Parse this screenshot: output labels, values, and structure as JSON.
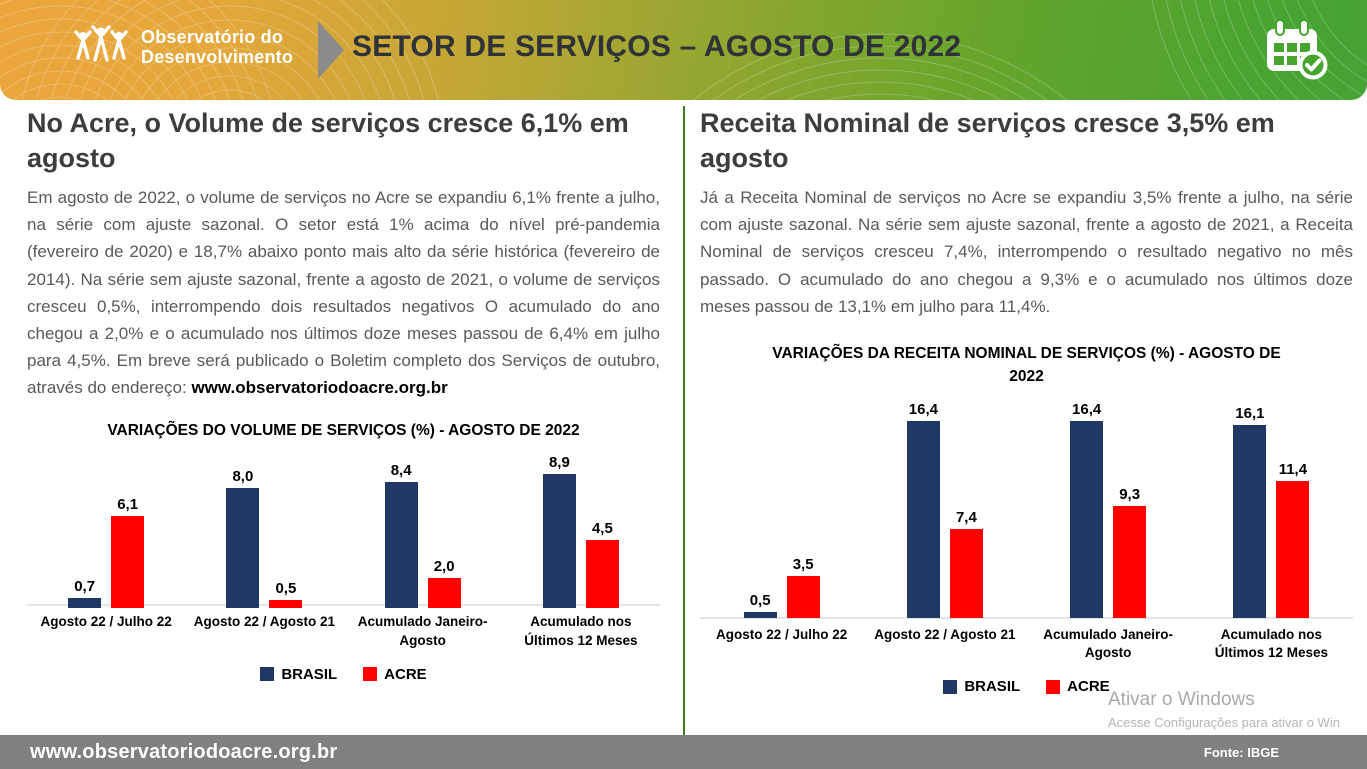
{
  "header": {
    "logo_line1": "Observatório do",
    "logo_line2": "Desenvolvimento",
    "title": "SETOR DE SERVIÇOS – AGOSTO DE 2022"
  },
  "left": {
    "heading": "No Acre, o Volume de serviços cresce 6,1% em agosto",
    "body": "Em agosto de 2022, o volume de serviços no Acre se expandiu 6,1% frente a julho, na série com ajuste sazonal. O setor está 1% acima do nível pré-pandemia (fevereiro de 2020) e 18,7% abaixo ponto mais alto da série histórica (fevereiro de 2014). Na série sem ajuste sazonal, frente a agosto de 2021, o volume de serviços cresceu 0,5%, interrompendo dois resultados negativos O acumulado do ano chegou a 2,0% e o acumulado nos últimos doze meses passou de 6,4% em julho para 4,5%. Em breve será publicado o Boletim completo dos Serviços de outubro, através do endereço:",
    "body_link": "www.observatoriodoacre.org.br"
  },
  "right": {
    "heading": "Receita Nominal de serviços cresce 3,5% em agosto",
    "body": "Já a Receita Nominal de serviços no Acre se expandiu 3,5% frente a julho, na série com ajuste sazonal. Na série sem ajuste sazonal, frente a agosto de 2021, a Receita Nominal de serviços cresceu 7,4%, interrompendo o resultado negativo no mês passado. O acumulado do ano chegou a 9,3% e o acumulado nos últimos doze meses passou de 13,1% em julho para 11,4%."
  },
  "chart_data": [
    {
      "type": "bar",
      "title": "VARIAÇÕES DO VOLUME DE SERVIÇOS (%) - AGOSTO DE 2022",
      "categories": [
        "Agosto 22 / Julho 22",
        "Agosto 22 / Agosto 21",
        "Acumulado Janeiro-Agosto",
        "Acumulado nos Últimos 12 Meses"
      ],
      "series": [
        {
          "name": "BRASIL",
          "color": "#1f3864",
          "values": [
            0.7,
            8.0,
            8.4,
            8.9
          ]
        },
        {
          "name": "ACRE",
          "color": "#ff0000",
          "values": [
            6.1,
            0.5,
            2.0,
            4.5
          ]
        }
      ],
      "ylim": [
        0,
        10
      ],
      "grid": false,
      "legend_position": "bottom",
      "value_label_format": "comma-decimal"
    },
    {
      "type": "bar",
      "title": "VARIAÇÕES DA RECEITA NOMINAL DE SERVIÇOS (%) - AGOSTO DE 2022",
      "categories": [
        "Agosto 22 / Julho 22",
        "Agosto 22 / Agosto 21",
        "Acumulado Janeiro-Agosto",
        "Acumulado nos Últimos 12 Meses"
      ],
      "series": [
        {
          "name": "BRASIL",
          "color": "#1f3864",
          "values": [
            0.5,
            16.4,
            16.4,
            16.1
          ]
        },
        {
          "name": "ACRE",
          "color": "#ff0000",
          "values": [
            3.5,
            7.4,
            9.3,
            11.4
          ]
        }
      ],
      "ylim": [
        0,
        18
      ],
      "grid": false,
      "legend_position": "bottom",
      "value_label_format": "comma-decimal"
    }
  ],
  "watermark": {
    "line1": "Ativar o Windows",
    "line2": "Acesse Configurações para ativar o Win"
  },
  "footer": {
    "url": "www.observatoriodoacre.org.br",
    "source": "Fonte: IBGE"
  },
  "colors": {
    "brasil": "#1f3864",
    "acre": "#ff0000",
    "header_green": "#47a42f",
    "header_orange": "#eaa63c",
    "divider_green": "#3f7d22",
    "footer_gray": "#808080",
    "heading_gray": "#3d3d3d",
    "body_gray": "#595959"
  }
}
